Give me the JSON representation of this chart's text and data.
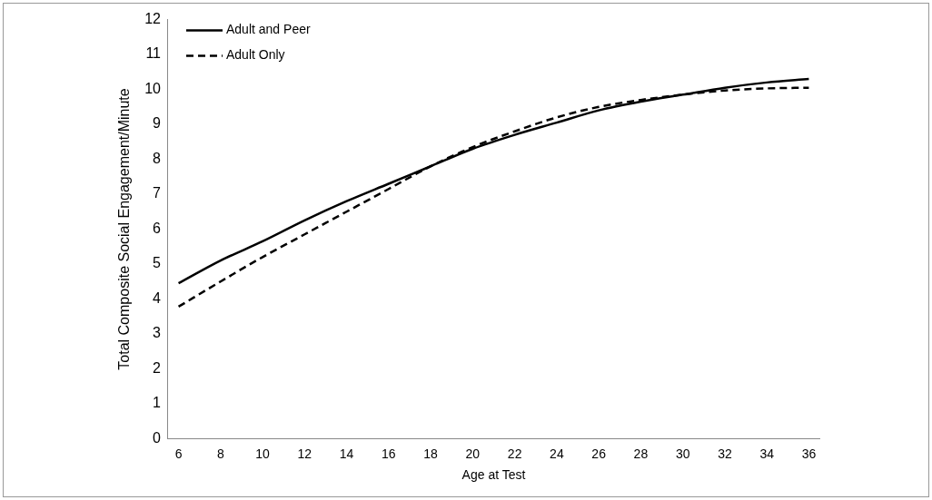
{
  "chart_data": {
    "type": "line",
    "xlabel": "Age at Test",
    "ylabel": "Total Composite Social Engagement/Minute",
    "x": [
      6,
      8,
      10,
      12,
      14,
      16,
      18,
      20,
      22,
      24,
      26,
      28,
      30,
      32,
      34,
      36
    ],
    "series": [
      {
        "name": "Adult and Peer",
        "color": "#000000",
        "line_style": "solid",
        "values": [
          4.45,
          5.1,
          5.65,
          6.25,
          6.8,
          7.3,
          7.8,
          8.3,
          8.7,
          9.05,
          9.4,
          9.65,
          9.85,
          10.05,
          10.2,
          10.3
        ]
      },
      {
        "name": "Adult Only",
        "color": "#000000",
        "line_style": "dashed",
        "values": [
          3.78,
          4.5,
          5.2,
          5.85,
          6.5,
          7.15,
          7.8,
          8.35,
          8.8,
          9.2,
          9.5,
          9.7,
          9.85,
          9.97,
          10.03,
          10.05
        ]
      }
    ],
    "xlim": [
      5.5,
      36.5
    ],
    "xticks": [
      6,
      8,
      10,
      12,
      14,
      16,
      18,
      20,
      22,
      24,
      26,
      28,
      30,
      32,
      34,
      36
    ],
    "ylim": [
      0,
      12
    ],
    "yticks": [
      0,
      1,
      2,
      3,
      4,
      5,
      6,
      7,
      8,
      9,
      10,
      11,
      12
    ],
    "grid": false,
    "legend": "top left",
    "marker": "none"
  }
}
